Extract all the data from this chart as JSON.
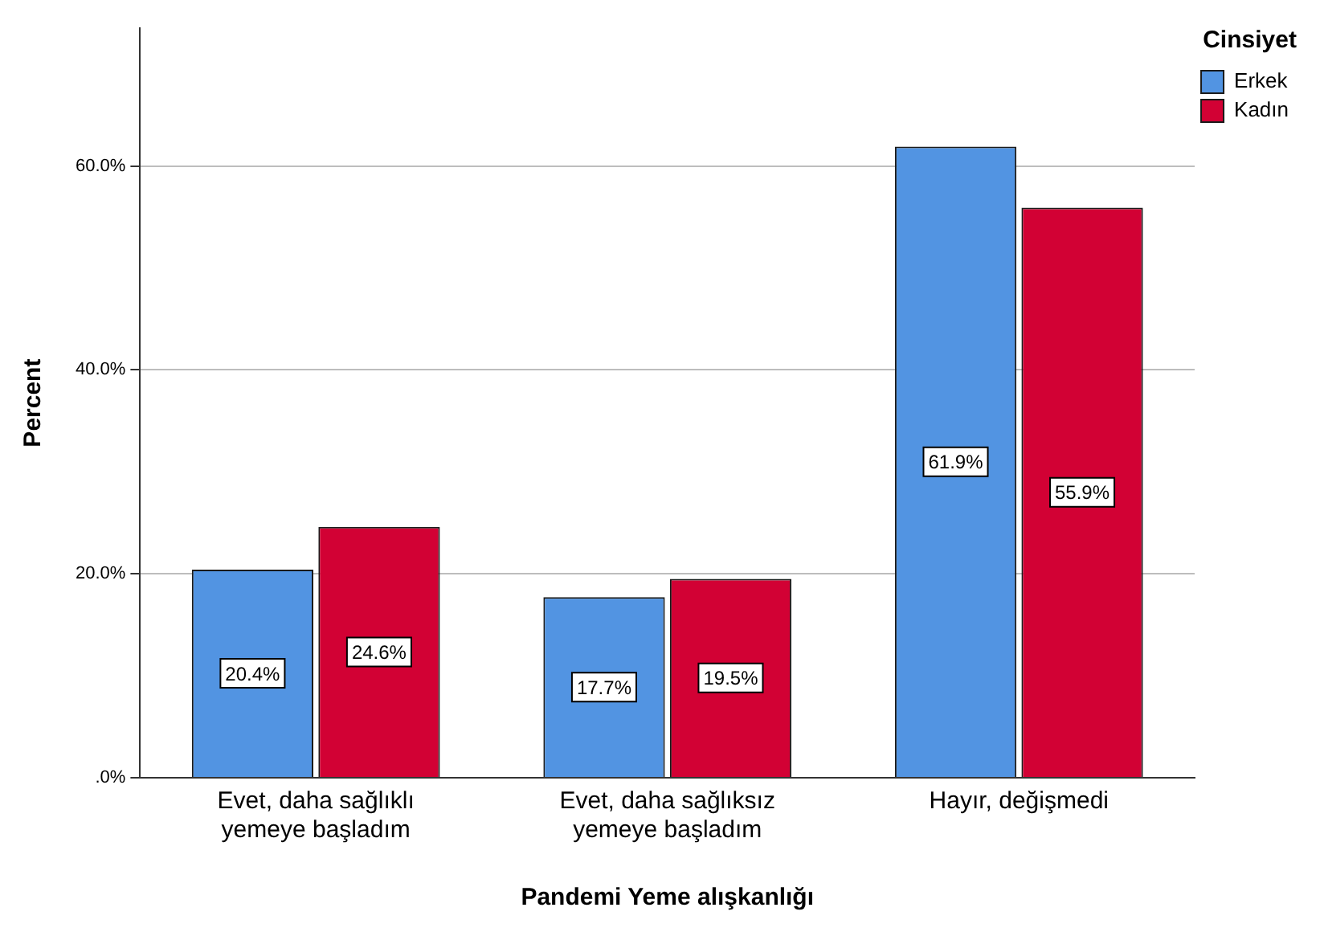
{
  "chart_data": {
    "type": "bar",
    "xlabel": "Pandemi Yeme alışkanlığı",
    "ylabel": "Percent",
    "legend_title": "Cinsiyet",
    "legend": "top right",
    "grid": "y",
    "categories": [
      "Evet, daha sağlıklı yemeye başladım",
      "Evet, daha sağlıksız yemeye başladım",
      "Hayır, değişmedi"
    ],
    "series": [
      {
        "name": "Erkek",
        "color": "#5294e2",
        "values": [
          20.4,
          17.7,
          61.9
        ],
        "value_labels": [
          "20.4%",
          "17.7%",
          "61.9%"
        ]
      },
      {
        "name": "Kadın",
        "color": "#d20134",
        "values": [
          24.6,
          19.5,
          55.9
        ],
        "value_labels": [
          "24.6%",
          "19.5%",
          "55.9%"
        ]
      }
    ],
    "ylim": [
      0,
      73.5
    ],
    "yticks": [
      {
        "value": 0,
        "label": ".0%"
      },
      {
        "value": 20,
        "label": "20.0%"
      },
      {
        "value": 40,
        "label": "40.0%"
      },
      {
        "value": 60,
        "label": "60.0%"
      }
    ]
  }
}
